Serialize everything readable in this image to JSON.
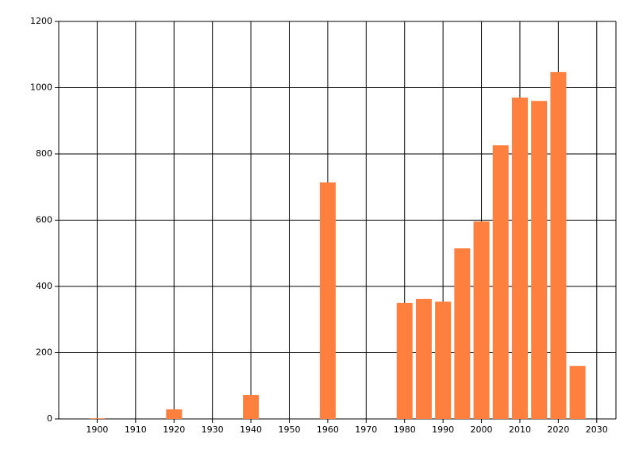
{
  "chart_data": {
    "type": "bar",
    "x": [
      1900,
      1920,
      1940,
      1960,
      1980,
      1985,
      1990,
      1995,
      2000,
      2005,
      2010,
      2015,
      2020,
      2025
    ],
    "values": [
      2,
      29,
      72,
      714,
      350,
      362,
      354,
      515,
      596,
      826,
      970,
      960,
      1047,
      160
    ],
    "color": "#ff7f3f",
    "xlim": [
      1890,
      2035
    ],
    "xticks": [
      1900,
      1910,
      1920,
      1930,
      1940,
      1950,
      1960,
      1970,
      1980,
      1990,
      2000,
      2010,
      2020,
      2030
    ],
    "ylim": [
      0,
      1200
    ],
    "yticks": [
      0,
      200,
      400,
      600,
      800,
      1000,
      1200
    ],
    "grid": true
  }
}
